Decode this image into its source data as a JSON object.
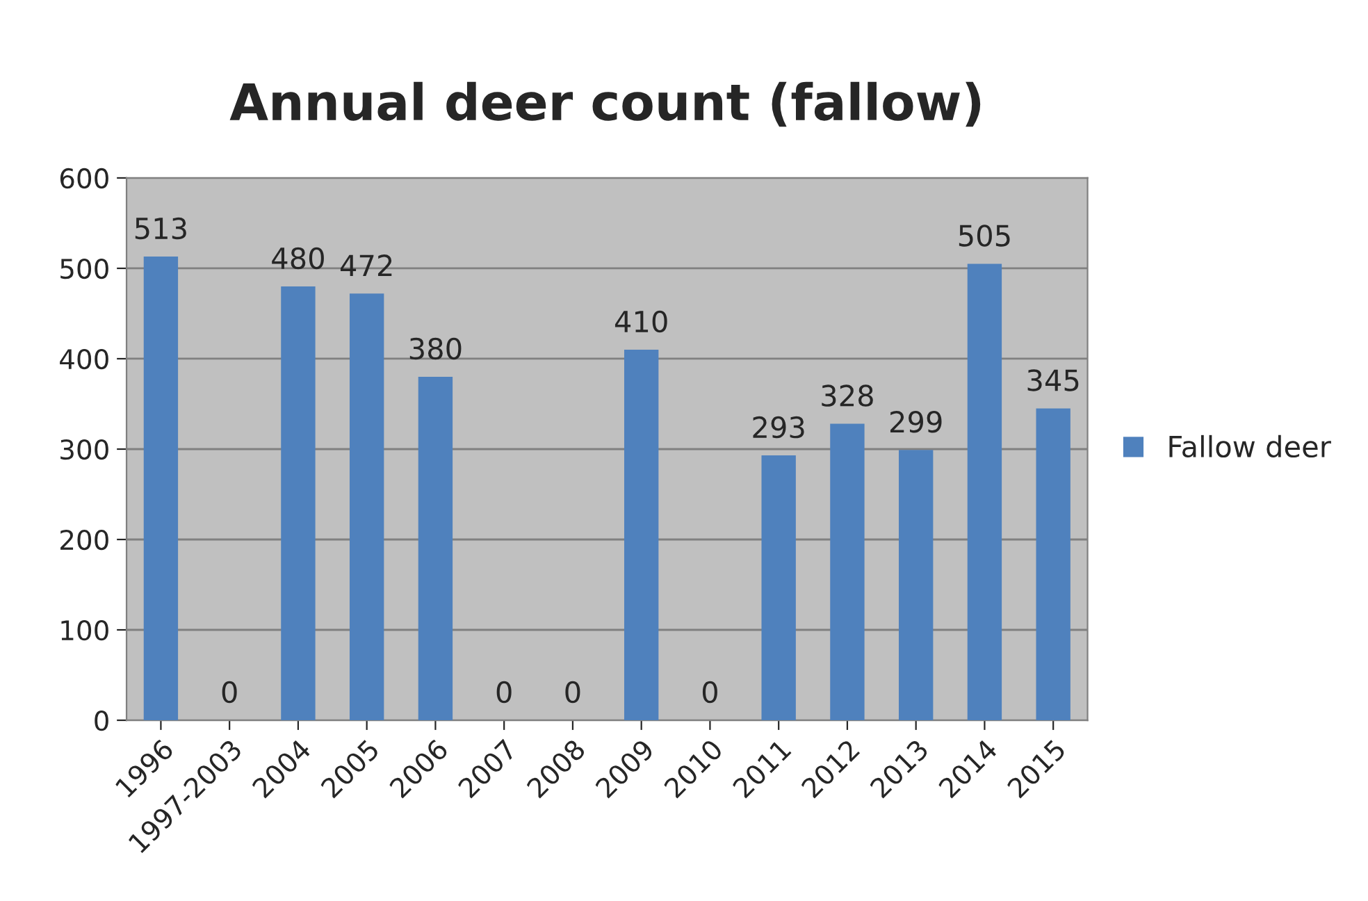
{
  "chart_data": {
    "type": "bar",
    "title": "Annual deer count (fallow)",
    "categories": [
      "1996",
      "1997-2003",
      "2004",
      "2005",
      "2006",
      "2007",
      "2008",
      "2009",
      "2010",
      "2011",
      "2012",
      "2013",
      "2014",
      "2015"
    ],
    "series": [
      {
        "name": "Fallow deer",
        "color": "#4f81bd",
        "values": [
          513,
          0,
          480,
          472,
          380,
          0,
          0,
          410,
          0,
          293,
          328,
          299,
          505,
          345
        ]
      }
    ],
    "ylim": [
      0,
      600
    ],
    "yticks": [
      0,
      100,
      200,
      300,
      400,
      500,
      600
    ],
    "grid": "y",
    "legend": "right",
    "data_labels": true
  }
}
